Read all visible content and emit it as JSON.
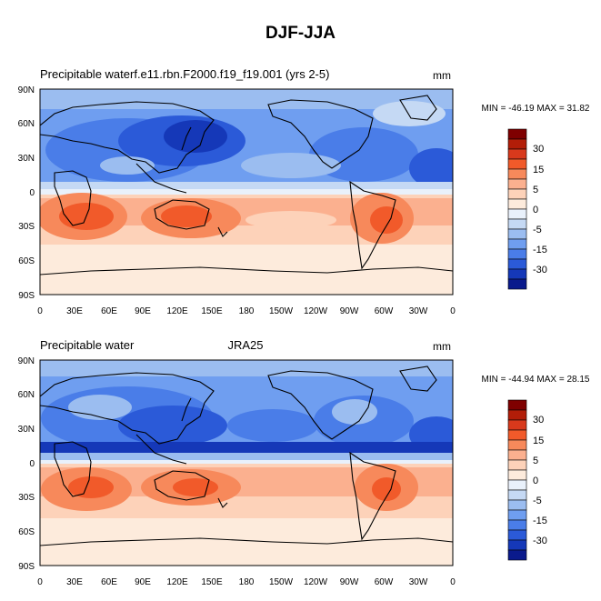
{
  "figure_title": "DJF-JJA",
  "panels": [
    {
      "left_title": "Precipitable waterf.e11.rbn.F2000.f19_f19.001 (yrs 2-5)",
      "center_title": "",
      "right_title": "mm",
      "stats": "MIN = -46.19 MAX =  31.82"
    },
    {
      "left_title": "Precipitable water",
      "center_title": "JRA25",
      "right_title": "mm",
      "stats": "MIN = -44.94 MAX =  28.15"
    }
  ],
  "lat_labels": [
    "90N",
    "60N",
    "30N",
    "0",
    "30S",
    "60S",
    "90S"
  ],
  "lon_labels": [
    "0",
    "30E",
    "60E",
    "90E",
    "120E",
    "150E",
    "180",
    "150W",
    "120W",
    "90W",
    "60W",
    "30W",
    "0"
  ],
  "colorbar": {
    "labels": [
      "30",
      "15",
      "5",
      "0",
      "-5",
      "-15",
      "-30"
    ],
    "colors": [
      "#7f0000",
      "#b21d08",
      "#d8391c",
      "#f15a2a",
      "#f7895b",
      "#fbb08f",
      "#fdd2b9",
      "#fdebdc",
      "#e9f1fb",
      "#c5d9f4",
      "#9bbdf0",
      "#6f9ef0",
      "#4a7de8",
      "#2b5ad8",
      "#1538b8",
      "#0a1a8c"
    ]
  },
  "chart_data": [
    {
      "type": "heatmap",
      "title": "DJF-JJA",
      "left_title": "Precipitable waterf.e11.rbn.F2000.f19_f19.001 (yrs 2-5)",
      "units": "mm",
      "min": -46.19,
      "max": 31.82,
      "xlim": [
        0,
        360
      ],
      "ylim": [
        -90,
        90
      ],
      "contour_levels": [
        -30,
        -15,
        -5,
        0,
        5,
        15,
        30
      ]
    },
    {
      "type": "heatmap",
      "title": "DJF-JJA",
      "left_title": "Precipitable water",
      "center_title": "JRA25",
      "units": "mm",
      "min": -44.94,
      "max": 28.15,
      "xlim": [
        0,
        360
      ],
      "ylim": [
        -90,
        90
      ],
      "contour_levels": [
        -30,
        -15,
        -5,
        0,
        5,
        15,
        30
      ]
    }
  ]
}
